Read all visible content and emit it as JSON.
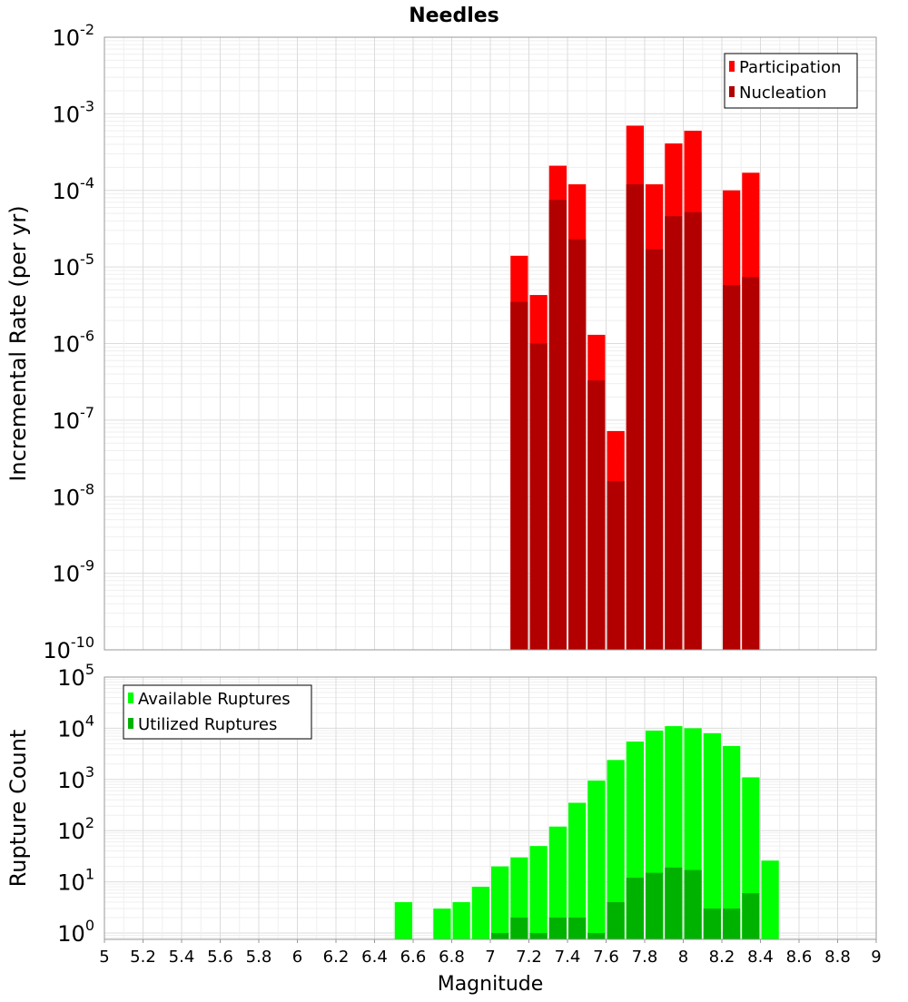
{
  "title": "Needles",
  "chart_data": [
    {
      "type": "bar",
      "yscale": "log",
      "ylabel": "Incremental Rate (per yr)",
      "xlabel": "",
      "xlim": [
        5,
        9
      ],
      "ylim": [
        1e-10,
        0.01
      ],
      "ytick_exponents": [
        -10,
        -9,
        -8,
        -7,
        -6,
        -5,
        -4,
        -3,
        -2
      ],
      "bin_width": 0.1,
      "legend_position": "top-right",
      "grid": true,
      "series": [
        {
          "name": "Participation",
          "color": "#ff0000",
          "x": [
            7.15,
            7.25,
            7.35,
            7.45,
            7.55,
            7.65,
            7.75,
            7.85,
            7.95,
            8.05,
            8.25,
            8.35
          ],
          "values": [
            1.4e-05,
            4.3e-06,
            0.00021,
            0.00012,
            1.3e-06,
            7.2e-08,
            0.0007,
            0.00012,
            0.00041,
            0.0006,
            0.0001,
            0.00017
          ]
        },
        {
          "name": "Nucleation",
          "color": "#b20000",
          "x": [
            7.15,
            7.25,
            7.35,
            7.45,
            7.55,
            7.65,
            7.75,
            7.85,
            7.95,
            8.05,
            8.25,
            8.35
          ],
          "values": [
            3.5e-06,
            1e-06,
            7.5e-05,
            2.3e-05,
            3.3e-07,
            1.6e-08,
            0.00012,
            1.7e-05,
            4.6e-05,
            5.2e-05,
            5.8e-06,
            7.4e-06
          ]
        }
      ]
    },
    {
      "type": "bar",
      "yscale": "log",
      "ylabel": "Rupture Count",
      "xlabel": "Magnitude",
      "xlim": [
        5,
        9
      ],
      "ylim": [
        0.75,
        100000.0
      ],
      "ytick_exponents": [
        0,
        1,
        2,
        3,
        4,
        5
      ],
      "xticks": [
        "5",
        "5.2",
        "5.4",
        "5.6",
        "5.8",
        "6",
        "6.2",
        "6.4",
        "6.6",
        "6.8",
        "7",
        "7.2",
        "7.4",
        "7.6",
        "7.8",
        "8",
        "8.2",
        "8.4",
        "8.6",
        "8.8",
        "9"
      ],
      "bin_width": 0.1,
      "legend_position": "top-left",
      "grid": true,
      "series": [
        {
          "name": "Available Ruptures",
          "color": "#00ff00",
          "x": [
            6.55,
            6.75,
            6.85,
            6.95,
            7.05,
            7.15,
            7.25,
            7.35,
            7.45,
            7.55,
            7.65,
            7.75,
            7.85,
            7.95,
            8.05,
            8.15,
            8.25,
            8.35,
            8.45
          ],
          "values": [
            4,
            3,
            4,
            8,
            20,
            30,
            50,
            120,
            350,
            950,
            2400,
            5500,
            9000,
            11000,
            10000,
            8000,
            4500,
            1100,
            26
          ]
        },
        {
          "name": "Utilized Ruptures",
          "color": "#00b200",
          "x": [
            7.05,
            7.15,
            7.25,
            7.35,
            7.45,
            7.55,
            7.65,
            7.75,
            7.85,
            7.95,
            8.05,
            8.15,
            8.25,
            8.35
          ],
          "values": [
            1,
            2,
            1,
            2,
            2,
            1,
            4,
            12,
            15,
            19,
            17,
            3,
            3,
            6
          ]
        }
      ]
    }
  ]
}
